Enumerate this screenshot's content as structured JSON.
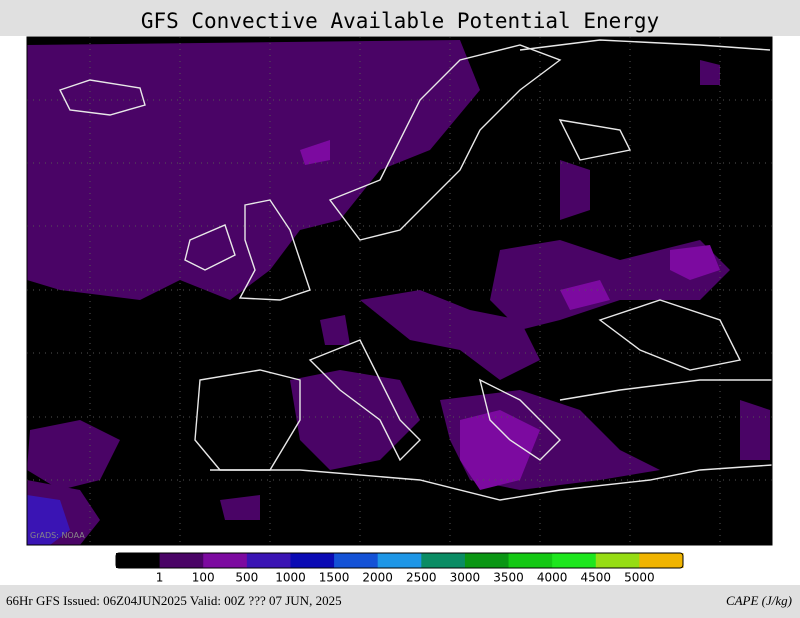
{
  "title": "GFS Convective Available Potential Energy",
  "legend": {
    "colors": [
      "#000000",
      "#4a0466",
      "#7c0aa0",
      "#3a14b4",
      "#0a0ab4",
      "#1452d6",
      "#1e96e6",
      "#0a8c64",
      "#0a9614",
      "#14c814",
      "#1ee61e",
      "#96dc14",
      "#f0b400"
    ],
    "ticks": [
      1,
      100,
      500,
      1000,
      1500,
      2000,
      2500,
      3000,
      3500,
      4000,
      4500,
      5000
    ]
  },
  "footer": {
    "left": "66Hr GFS Issued: 06Z04JUN2025 Valid: 00Z ??? 07 JUN, 2025",
    "right": "CAPE (J/kg)"
  }
}
